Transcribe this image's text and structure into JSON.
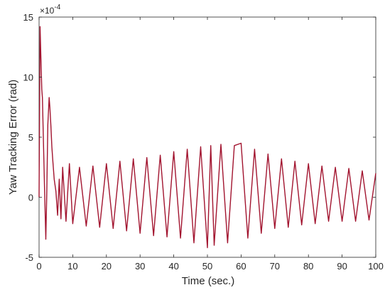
{
  "chart_data": {
    "type": "line",
    "xlabel": "Time (sec.)",
    "ylabel": "Yaw Tracking Error (rad)",
    "y_multiplier_label": "×10",
    "y_multiplier_exponent": "-4",
    "xlim": [
      0,
      100
    ],
    "ylim": [
      -5,
      15
    ],
    "xticks": [
      0,
      10,
      20,
      30,
      40,
      50,
      60,
      70,
      80,
      90,
      100
    ],
    "yticks": [
      -5,
      0,
      5,
      10,
      15
    ],
    "xtick_labels": [
      "0",
      "10",
      "20",
      "30",
      "40",
      "50",
      "60",
      "70",
      "80",
      "90",
      "100"
    ],
    "ytick_labels": [
      "-5",
      "0",
      "5",
      "10",
      "15"
    ],
    "grid": false,
    "line_color": "#a2142f",
    "series": [
      {
        "x": [
          0,
          0.3,
          0.5,
          0.8,
          1.0,
          1.3,
          1.6,
          2.0,
          2.3,
          2.6,
          3.0,
          3.2,
          3.5,
          3.8,
          4.1,
          4.5,
          5.0,
          5.5,
          6,
          6.5,
          7,
          8,
          9,
          10,
          12,
          14,
          16,
          18,
          20,
          22,
          24,
          26,
          28,
          30,
          32,
          34,
          36,
          38,
          40,
          42,
          44,
          46,
          48,
          50,
          51,
          52,
          54,
          56,
          58,
          60,
          62,
          64,
          66,
          68,
          70,
          72,
          74,
          76,
          78,
          80,
          82,
          84,
          86,
          88,
          90,
          92,
          94,
          96,
          98,
          100
        ],
        "y": [
          0,
          14.2,
          12.0,
          9.0,
          8.3,
          4.5,
          1.0,
          -3.5,
          0.5,
          6.0,
          8.3,
          7.5,
          6.0,
          4.2,
          3.0,
          1.5,
          0.5,
          -1.5,
          1.5,
          -1.8,
          2.5,
          -2.0,
          2.8,
          -2.2,
          2.5,
          -2.4,
          2.6,
          -2.5,
          2.8,
          -2.6,
          3.0,
          -2.8,
          3.2,
          -3.0,
          3.3,
          -3.2,
          3.5,
          -3.3,
          3.8,
          -3.4,
          4.0,
          -3.8,
          4.2,
          -4.2,
          4.3,
          -4.0,
          4.4,
          -3.8,
          4.3,
          4.5,
          -3.4,
          4.0,
          -3.0,
          3.6,
          -2.6,
          3.2,
          -2.5,
          3.0,
          -2.3,
          2.8,
          -2.2,
          2.6,
          -2.0,
          2.5,
          -2.0,
          2.4,
          -2.0,
          2.2,
          -1.9,
          2.0
        ]
      }
    ]
  }
}
